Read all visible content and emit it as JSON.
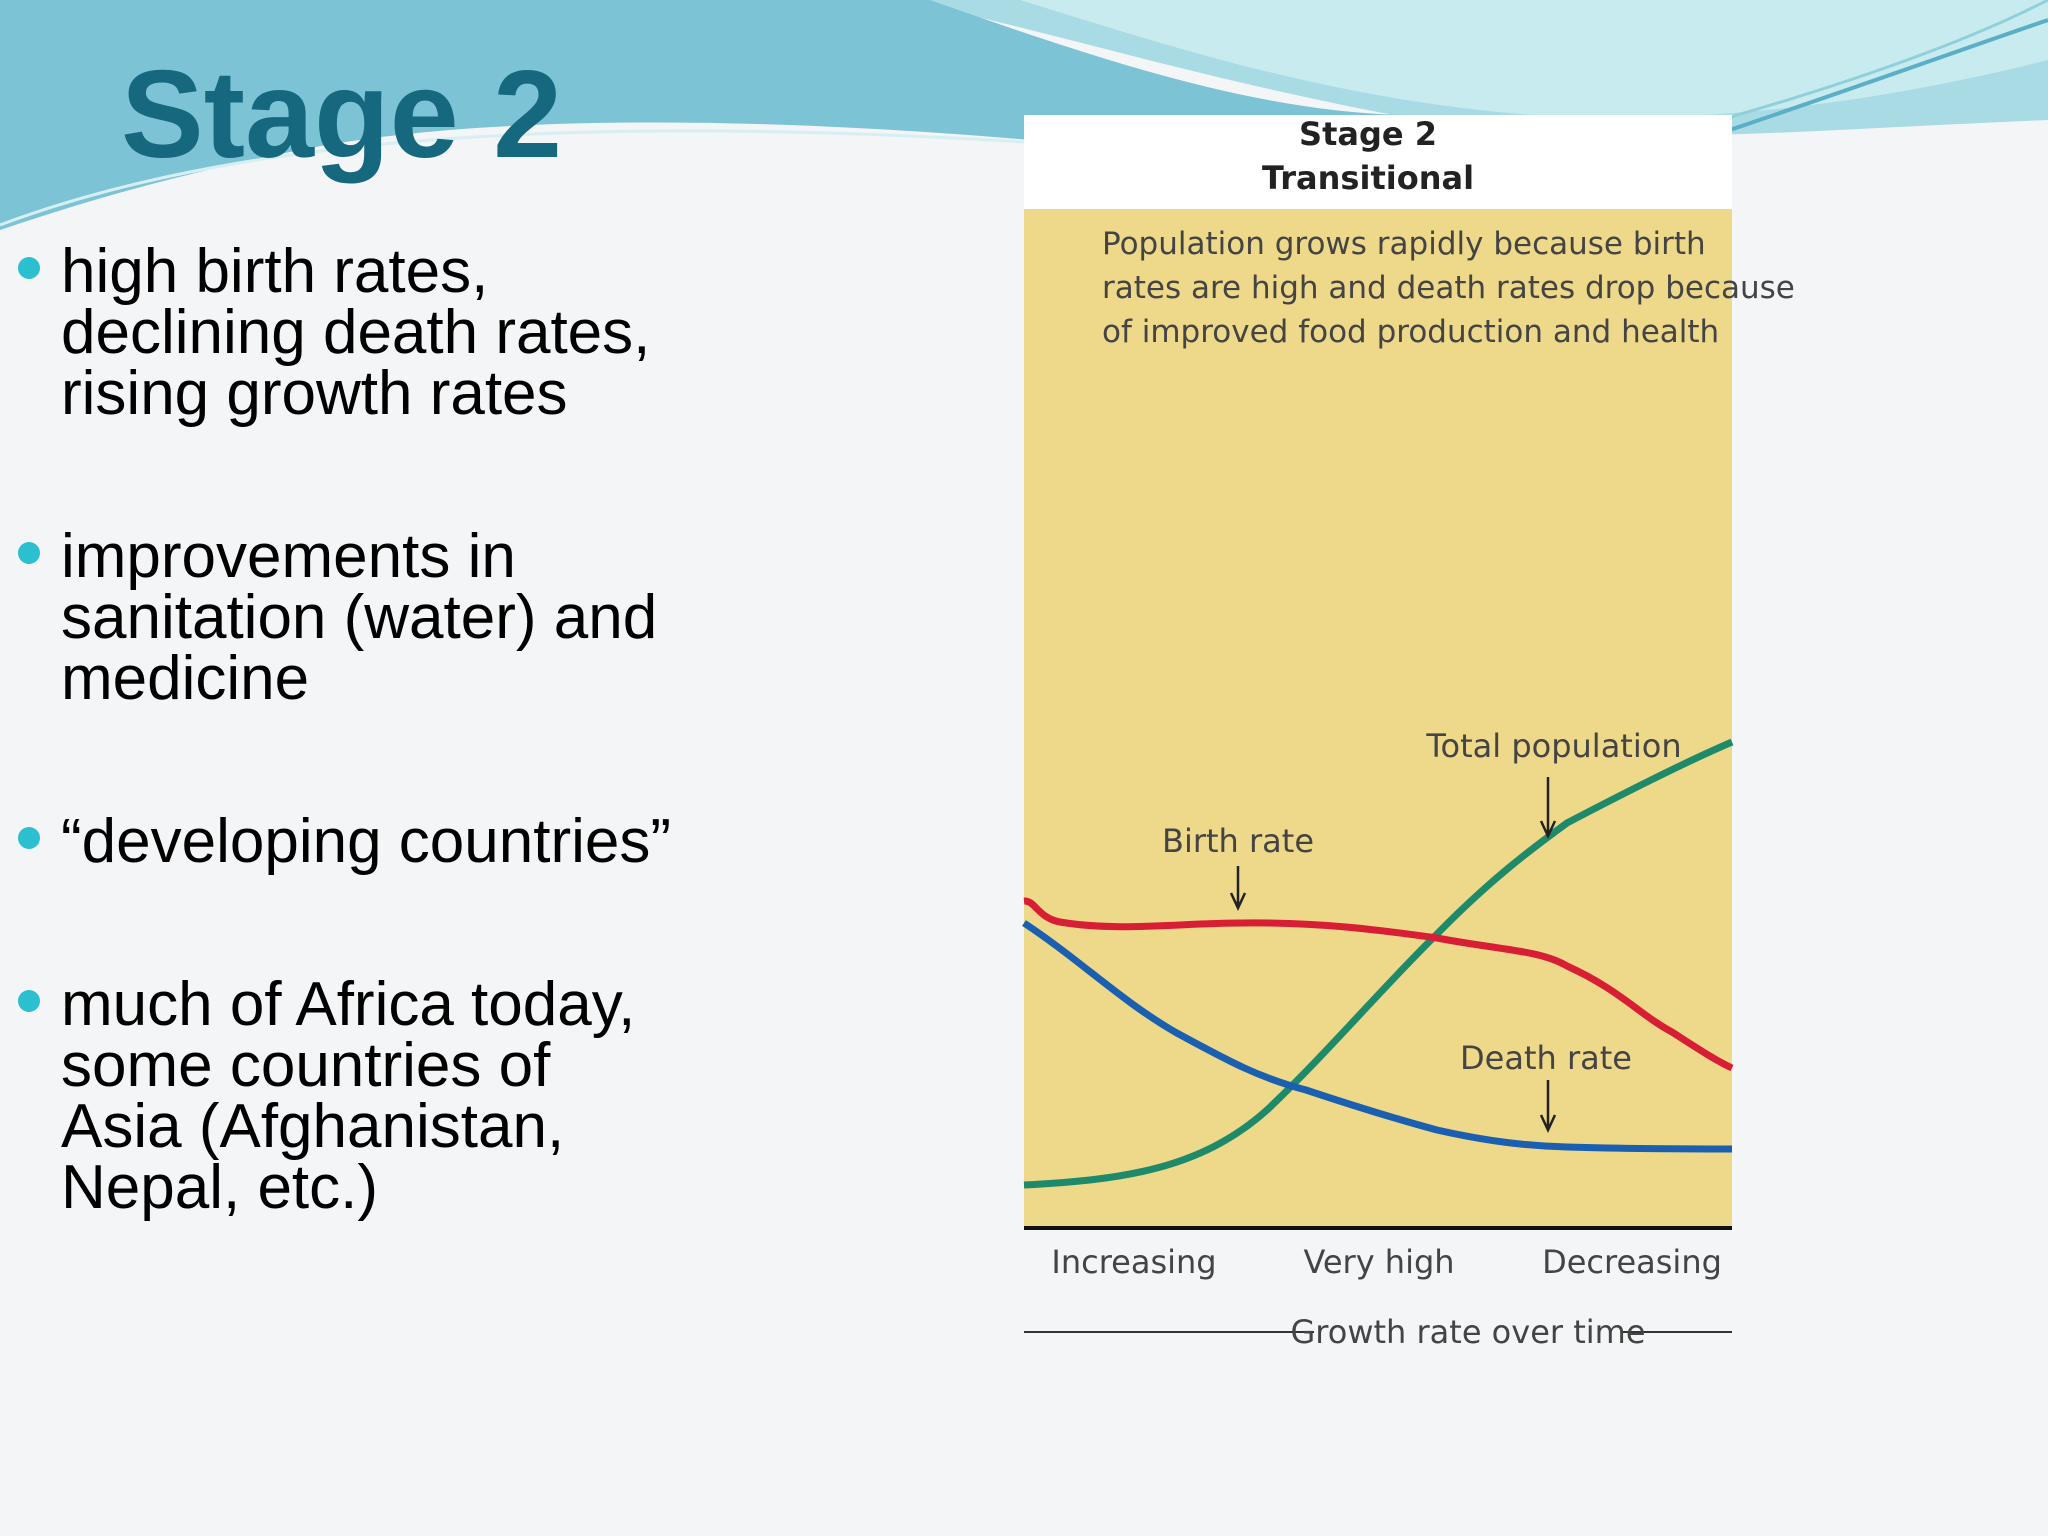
{
  "title": "Stage 2",
  "bullets": [
    [
      "high birth rates,",
      "declining death rates,",
      "rising growth rates"
    ],
    [
      "improvements in",
      "sanitation (water) and",
      "medicine"
    ],
    [
      "“developing countries”"
    ],
    [
      "much of Africa today,",
      "some countries of",
      "Asia (Afghanistan,",
      "Nepal, etc.)"
    ]
  ],
  "figure": {
    "title": [
      "Stage 2",
      "Transitional"
    ],
    "caption": [
      "Population grows rapidly because birth",
      "rates are high and death rates drop because",
      "of improved food production and health"
    ],
    "labels": {
      "birth_rate": "Birth rate",
      "total_population": "Total population",
      "death_rate": "Death rate"
    },
    "x_labels": [
      "Increasing",
      "Very high",
      "Decreasing"
    ],
    "x_axis_title": "Growth rate over time"
  }
}
